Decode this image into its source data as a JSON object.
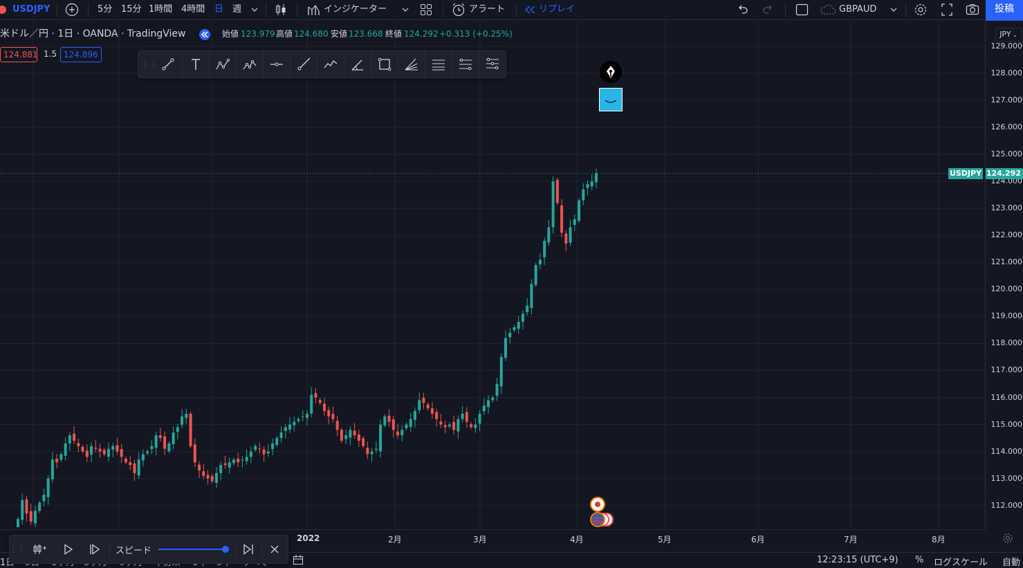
{
  "header": {
    "symbol": "USDJPY",
    "intervals": [
      "5分",
      "15分",
      "1時間",
      "4時間",
      "日",
      "週"
    ],
    "indicators_label": "インジケーター",
    "alert_label": "アラート",
    "replay_label": "リプレイ",
    "compare_symbol": "GBPAUD",
    "post_label": "投稿"
  },
  "legend": {
    "title": "米ドル／円 · 1日 · OANDA · TradingView",
    "open_label": "始値",
    "open": "123.979",
    "high_label": "高値",
    "high": "124.680",
    "low_label": "安値",
    "low": "123.668",
    "close_label": "終値",
    "close": "124.292",
    "change": "+0.313 (+0.25%)",
    "sell_price": "124.881",
    "spread": "1.5",
    "buy_price": "124.896"
  },
  "currency_label": "JPY",
  "last_price_label": {
    "symbol": "USDJPY",
    "price": "124.292"
  },
  "colors": {
    "up": "#26a69a",
    "down": "#ef5350",
    "background": "#131722",
    "grid": "#1f2430",
    "accent": "#2962ff"
  },
  "drawing_tools": [
    "trend-line-icon",
    "text-icon",
    "abcd-pattern-icon",
    "elliott-wave-icon",
    "horizontal-ray-icon",
    "ray-icon",
    "path-icon",
    "angle-icon",
    "rectangle-icon",
    "fib-fan-icon",
    "parallel-channel-icon",
    "fib-retracement-icon",
    "fib-extension-icon"
  ],
  "chart_data": {
    "type": "candlestick",
    "y_ticks": [
      "129.000",
      "128.000",
      "127.000",
      "126.000",
      "125.000",
      "124.000",
      "123.000",
      "122.000",
      "121.000",
      "120.000",
      "119.000",
      "118.000",
      "117.000",
      "116.000",
      "115.000",
      "114.000",
      "113.000",
      "112.000"
    ],
    "x_ticks": [
      "2022",
      "2月",
      "3月",
      "4月",
      "5月",
      "6月",
      "7月",
      "8月"
    ],
    "ylim": [
      111.2,
      129.5
    ],
    "last_price": 124.292,
    "closes": [
      111.5,
      112.2,
      111.7,
      111.4,
      111.8,
      112.1,
      112.4,
      113.0,
      113.7,
      113.6,
      113.9,
      114.3,
      114.6,
      114.4,
      114.2,
      114.0,
      113.8,
      114.2,
      114.1,
      114.0,
      113.9,
      114.1,
      114.2,
      114.0,
      113.8,
      113.6,
      113.5,
      113.2,
      113.7,
      113.9,
      114.0,
      114.2,
      114.6,
      114.5,
      114.1,
      114.3,
      114.7,
      114.9,
      115.3,
      115.4,
      114.2,
      113.6,
      113.3,
      113.1,
      113.0,
      112.9,
      113.2,
      113.5,
      113.5,
      113.6,
      113.7,
      113.6,
      113.7,
      113.8,
      114.0,
      114.2,
      114.1,
      113.9,
      114.0,
      114.3,
      114.5,
      114.7,
      114.9,
      115.0,
      115.1,
      115.2,
      115.3,
      115.4,
      116.1,
      116.0,
      115.8,
      115.5,
      115.3,
      115.2,
      114.8,
      114.4,
      114.6,
      114.8,
      114.6,
      114.4,
      114.2,
      113.9,
      114.0,
      114.1,
      115.0,
      115.3,
      115.1,
      114.8,
      114.6,
      114.8,
      115.0,
      115.2,
      115.5,
      115.9,
      115.8,
      115.6,
      115.4,
      115.2,
      115.0,
      114.9,
      115.0,
      114.8,
      115.2,
      115.4,
      115.1,
      114.9,
      115.0,
      115.4,
      115.7,
      115.9,
      116.0,
      116.5,
      117.5,
      118.2,
      118.4,
      118.6,
      118.8,
      119.1,
      119.4,
      120.2,
      120.9,
      121.1,
      121.8,
      122.3,
      124.0,
      123.2,
      122.1,
      121.7,
      122.3,
      122.6,
      123.3,
      123.7,
      123.9,
      124.0,
      124.3
    ]
  },
  "x_axis_ticks_pos_note": "",
  "replay_bar": {
    "speed_label": "スピード"
  },
  "bottom": {
    "ranges": [
      "1日",
      "5日",
      "1ヶ月",
      "3ヶ月",
      "6ヶ月",
      "年初来",
      "1年",
      "5年",
      "すべて"
    ],
    "time": "12:23:15 (UTC+9)",
    "percent": "%",
    "log_scale": "ログスケール",
    "auto": "自動"
  }
}
